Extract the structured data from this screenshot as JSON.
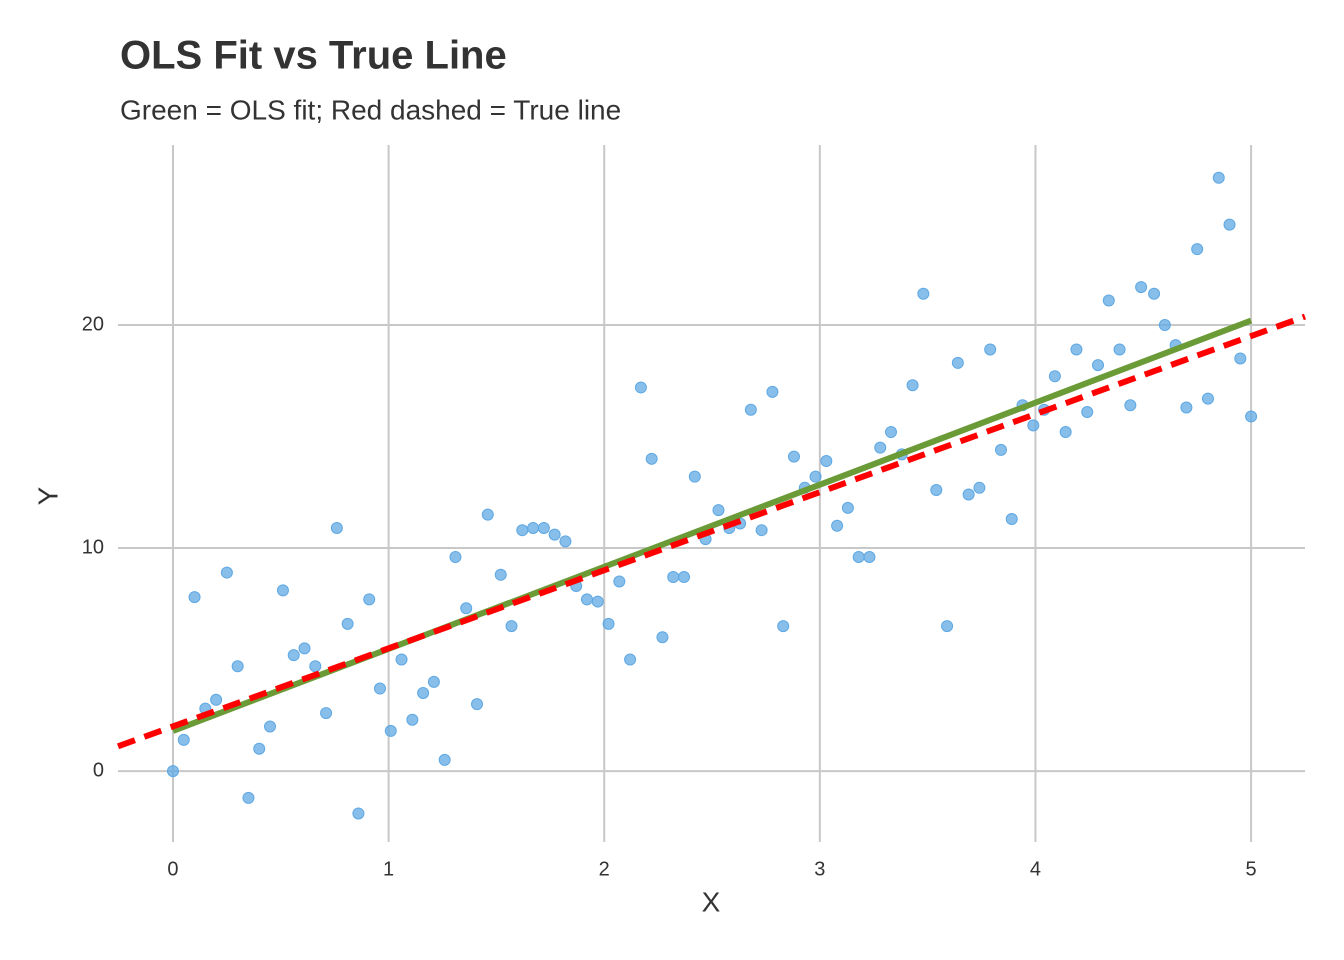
{
  "chart_data": {
    "type": "scatter",
    "title": "OLS Fit vs True Line",
    "subtitle": "Green = OLS fit; Red dashed = True line",
    "xlabel": "X",
    "ylabel": "Y",
    "xlim": [
      -0.255,
      5.25
    ],
    "ylim": [
      -3.18,
      28.07
    ],
    "xticks": [
      0,
      1,
      2,
      3,
      4,
      5
    ],
    "yticks": [
      0,
      10,
      20
    ],
    "grid": true,
    "series": [
      {
        "type": "scatter",
        "color": "#5fa8e3",
        "x": [
          0,
          0.05,
          0.1,
          0.15,
          0.2,
          0.25,
          0.3,
          0.35,
          0.4,
          0.45,
          0.51,
          0.56,
          0.61,
          0.66,
          0.71,
          0.76,
          0.81,
          0.86,
          0.91,
          0.96,
          1.01,
          1.06,
          1.11,
          1.16,
          1.21,
          1.26,
          1.31,
          1.36,
          1.41,
          1.46,
          1.52,
          1.57,
          1.62,
          1.67,
          1.72,
          1.77,
          1.82,
          1.87,
          1.92,
          1.97,
          2.02,
          2.07,
          2.12,
          2.17,
          2.22,
          2.27,
          2.32,
          2.37,
          2.42,
          2.47,
          2.53,
          2.58,
          2.63,
          2.68,
          2.73,
          2.78,
          2.83,
          2.88,
          2.93,
          2.98,
          3.03,
          3.08,
          3.13,
          3.18,
          3.23,
          3.28,
          3.33,
          3.38,
          3.43,
          3.48,
          3.54,
          3.59,
          3.64,
          3.69,
          3.74,
          3.79,
          3.84,
          3.89,
          3.94,
          3.99,
          4.04,
          4.09,
          4.14,
          4.19,
          4.24,
          4.29,
          4.34,
          4.39,
          4.44,
          4.49,
          4.55,
          4.6,
          4.65,
          4.7,
          4.75,
          4.8,
          4.85,
          4.9,
          4.95,
          5.0
        ],
        "values": [
          0.0,
          1.4,
          7.8,
          2.8,
          3.2,
          8.9,
          4.7,
          -1.2,
          1.0,
          2.0,
          8.1,
          5.2,
          5.5,
          4.7,
          2.6,
          10.9,
          6.6,
          -1.9,
          7.7,
          3.7,
          1.8,
          5.0,
          2.3,
          3.5,
          4.0,
          0.5,
          9.6,
          7.3,
          3.0,
          11.5,
          8.8,
          6.5,
          10.8,
          10.9,
          10.9,
          10.6,
          10.3,
          8.3,
          7.7,
          7.6,
          6.6,
          8.5,
          5.0,
          17.2,
          14.0,
          6.0,
          8.7,
          8.7,
          13.2,
          10.4,
          11.7,
          10.9,
          11.1,
          16.2,
          10.8,
          17.0,
          6.5,
          14.1,
          12.7,
          13.2,
          13.9,
          11.0,
          11.8,
          9.6,
          9.6,
          14.5,
          15.2,
          14.2,
          17.3,
          21.4,
          12.6,
          6.5,
          18.3,
          12.4,
          12.7,
          18.9,
          14.4,
          11.3,
          16.4,
          15.5,
          16.2,
          17.7,
          15.2,
          18.9,
          16.1,
          18.2,
          21.1,
          18.9,
          16.4,
          21.7,
          21.4,
          20.0,
          19.1,
          16.3,
          23.4,
          16.7,
          26.6,
          24.5,
          18.5,
          15.9
        ]
      },
      {
        "type": "line",
        "color": "#6b9b37",
        "linestyle": "solid",
        "x": [
          0,
          5
        ],
        "values": [
          1.8,
          20.2
        ]
      },
      {
        "type": "line",
        "color": "#ff0000",
        "linestyle": "dashed",
        "x": [
          -0.255,
          5.25
        ],
        "values": [
          1.11,
          20.38
        ]
      }
    ]
  }
}
